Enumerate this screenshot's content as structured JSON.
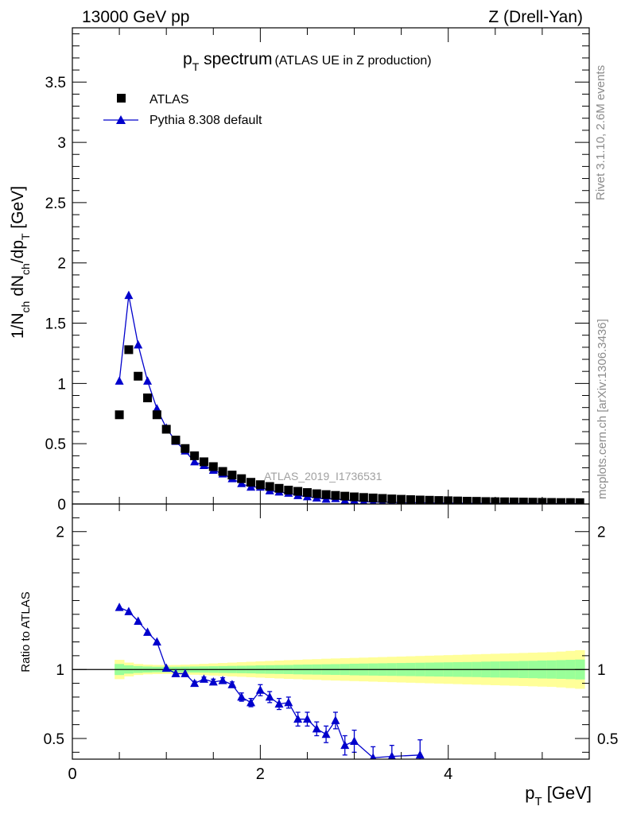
{
  "header": {
    "left": "13000 GeV pp",
    "right": "Z (Drell-Yan)"
  },
  "side_text": {
    "rivet": "Rivet 3.1.10,  2.6M events",
    "mcplots": "mcplots.cern.ch [arXiv:1306.3436]"
  },
  "colors": {
    "mc": "#0000cc",
    "data": "#000000",
    "band_inner": "#99ff99",
    "band_outer": "#ffff99"
  },
  "chart_data": [
    {
      "type": "scatter",
      "title_main": "p",
      "title_sub": "T",
      "title_rest": " spectrum",
      "title_note": "(ATLAS UE in Z production)",
      "analysis_id": "ATLAS_2019_I1736531",
      "ylabel_parts": {
        "a": "1/N",
        "b": "ch",
        "c": " dN",
        "d": "ch",
        "e": "/dp",
        "f": "T",
        "g": " [GeV]"
      },
      "xlim": [
        0,
        5.5
      ],
      "ylim": [
        0,
        3.95
      ],
      "yticks": [
        0,
        0.5,
        1,
        1.5,
        2,
        2.5,
        3,
        3.5
      ],
      "ytick_labels": [
        "0",
        "0.5",
        "1",
        "1.5",
        "2",
        "2.5",
        "3",
        "3.5"
      ],
      "legend": {
        "position": "top-left",
        "data_label": "ATLAS",
        "mc_label": "Pythia 8.308 default"
      },
      "series": [
        {
          "name": "ATLAS",
          "marker": "square",
          "x": [
            0.5,
            0.6,
            0.7,
            0.8,
            0.9,
            1.0,
            1.1,
            1.2,
            1.3,
            1.4,
            1.5,
            1.6,
            1.7,
            1.8,
            1.9,
            2.0,
            2.1,
            2.2,
            2.3,
            2.4,
            2.5,
            2.6,
            2.7,
            2.8,
            2.9,
            3.0,
            3.1,
            3.2,
            3.3,
            3.4,
            3.5,
            3.6,
            3.7,
            3.8,
            3.9,
            4.0,
            4.1,
            4.2,
            4.3,
            4.4,
            4.5,
            4.6,
            4.7,
            4.8,
            4.9,
            5.0,
            5.1,
            5.2,
            5.3,
            5.4
          ],
          "y": [
            0.74,
            1.28,
            1.06,
            0.88,
            0.74,
            0.62,
            0.53,
            0.46,
            0.4,
            0.35,
            0.31,
            0.27,
            0.24,
            0.21,
            0.18,
            0.16,
            0.145,
            0.13,
            0.115,
            0.105,
            0.095,
            0.085,
            0.078,
            0.071,
            0.065,
            0.059,
            0.054,
            0.05,
            0.046,
            0.042,
            0.039,
            0.036,
            0.033,
            0.031,
            0.029,
            0.027,
            0.025,
            0.023,
            0.022,
            0.02,
            0.019,
            0.018,
            0.017,
            0.016,
            0.015,
            0.014,
            0.013,
            0.012,
            0.012,
            0.011
          ]
        },
        {
          "name": "Pythia 8.308 default",
          "marker": "triangle",
          "x": [
            0.5,
            0.6,
            0.7,
            0.8,
            0.9,
            1.0,
            1.1,
            1.2,
            1.3,
            1.4,
            1.5,
            1.6,
            1.7,
            1.8,
            1.9,
            2.0,
            2.1,
            2.2,
            2.3,
            2.4,
            2.5,
            2.6,
            2.7,
            2.8,
            2.9,
            3.0,
            3.1,
            3.2,
            3.3,
            3.4,
            3.5,
            3.6,
            3.7,
            3.8,
            3.9,
            4.0,
            4.1,
            4.2,
            4.3,
            4.4,
            4.5,
            4.6,
            4.7,
            4.8,
            4.9,
            5.0,
            5.1,
            5.2,
            5.3,
            5.4
          ],
          "y": [
            1.02,
            1.73,
            1.32,
            1.02,
            0.79,
            0.63,
            0.52,
            0.44,
            0.35,
            0.32,
            0.28,
            0.25,
            0.21,
            0.17,
            0.14,
            0.14,
            0.11,
            0.1,
            0.09,
            0.07,
            0.06,
            0.05,
            0.04,
            0.045,
            0.03,
            0.03,
            0.02,
            0.015,
            0.015,
            0.015,
            0.01,
            0.01,
            0.012,
            0.008,
            0.008,
            0.007,
            0.007,
            0.006,
            0.006,
            0.005,
            0.005,
            0.005,
            0.004,
            0.004,
            0.004,
            0.003,
            0.003,
            0.003,
            0.003,
            0.003
          ]
        }
      ]
    },
    {
      "type": "scatter",
      "ylabel": "Ratio to ATLAS",
      "xlabel_main": "p",
      "xlabel_sub": "T",
      "xlabel_rest": " [GeV]",
      "xlim": [
        0,
        5.5
      ],
      "ylim": [
        0.35,
        2.2
      ],
      "xticks": [
        0,
        2,
        4
      ],
      "xtick_labels": [
        "0",
        "2",
        "4"
      ],
      "yticks": [
        0.5,
        1,
        2
      ],
      "ytick_labels": [
        "0.5",
        "1",
        "2"
      ],
      "band": {
        "x": [
          0.45,
          0.55,
          0.65,
          0.75,
          0.85,
          0.95,
          1.05,
          1.15,
          1.25,
          1.35,
          1.45,
          1.55,
          1.65,
          1.75,
          1.85,
          1.95,
          2.05,
          2.15,
          2.25,
          2.35,
          2.45,
          2.55,
          2.65,
          2.75,
          2.85,
          2.95,
          3.05,
          3.15,
          3.25,
          3.35,
          3.45,
          3.55,
          3.65,
          3.75,
          3.85,
          3.95,
          4.05,
          4.15,
          4.25,
          4.35,
          4.45,
          4.55,
          4.65,
          4.75,
          4.85,
          4.95,
          5.05,
          5.15,
          5.25,
          5.35,
          5.45
        ],
        "inner_half": [
          0.04,
          0.03,
          0.025,
          0.022,
          0.02,
          0.02,
          0.02,
          0.021,
          0.022,
          0.023,
          0.024,
          0.025,
          0.026,
          0.027,
          0.028,
          0.03,
          0.031,
          0.032,
          0.033,
          0.035,
          0.036,
          0.037,
          0.038,
          0.039,
          0.04,
          0.042,
          0.043,
          0.044,
          0.045,
          0.046,
          0.047,
          0.048,
          0.049,
          0.05,
          0.051,
          0.052,
          0.053,
          0.054,
          0.055,
          0.057,
          0.058,
          0.059,
          0.06,
          0.062,
          0.063,
          0.065,
          0.066,
          0.068,
          0.07,
          0.072,
          0.074
        ],
        "outer_half": [
          0.07,
          0.05,
          0.04,
          0.035,
          0.033,
          0.032,
          0.033,
          0.035,
          0.038,
          0.041,
          0.044,
          0.047,
          0.05,
          0.053,
          0.056,
          0.059,
          0.062,
          0.065,
          0.068,
          0.07,
          0.073,
          0.075,
          0.078,
          0.08,
          0.082,
          0.084,
          0.086,
          0.088,
          0.09,
          0.092,
          0.094,
          0.096,
          0.098,
          0.1,
          0.102,
          0.104,
          0.106,
          0.108,
          0.11,
          0.112,
          0.114,
          0.116,
          0.118,
          0.12,
          0.122,
          0.124,
          0.126,
          0.13,
          0.135,
          0.14,
          0.145
        ]
      },
      "series": [
        {
          "name": "Pythia 8.308 default",
          "x": [
            0.5,
            0.6,
            0.7,
            0.8,
            0.9,
            1.0,
            1.1,
            1.2,
            1.3,
            1.4,
            1.5,
            1.6,
            1.7,
            1.8,
            1.9,
            2.0,
            2.1,
            2.2,
            2.3,
            2.4,
            2.5,
            2.6,
            2.7,
            2.8,
            2.9,
            3.0,
            3.2,
            3.4,
            3.7
          ],
          "y": [
            1.45,
            1.42,
            1.35,
            1.27,
            1.2,
            1.01,
            0.97,
            0.97,
            0.9,
            0.93,
            0.91,
            0.92,
            0.89,
            0.8,
            0.76,
            0.85,
            0.8,
            0.75,
            0.76,
            0.64,
            0.64,
            0.57,
            0.53,
            0.63,
            0.45,
            0.48,
            0.36,
            0.37,
            0.38
          ],
          "err": [
            0.01,
            0.01,
            0.01,
            0.01,
            0.01,
            0.01,
            0.01,
            0.01,
            0.015,
            0.015,
            0.02,
            0.02,
            0.02,
            0.03,
            0.03,
            0.04,
            0.04,
            0.04,
            0.04,
            0.05,
            0.05,
            0.05,
            0.06,
            0.06,
            0.07,
            0.08,
            0.08,
            0.08,
            0.11
          ]
        }
      ]
    }
  ]
}
